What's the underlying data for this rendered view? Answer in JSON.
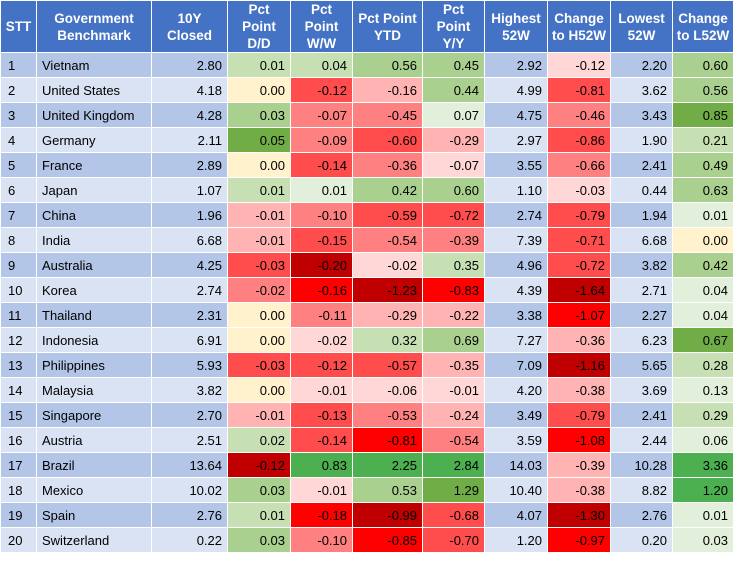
{
  "table": {
    "headers": [
      "STT",
      "Government Benchmark",
      "10Y Closed",
      "Pct Point D/D",
      "Pct Point W/W",
      "Pct Point YTD",
      "Pct Point Y/Y",
      "Highest 52W",
      "Change to H52W",
      "Lowest 52W",
      "Change to L52W"
    ],
    "rows": [
      {
        "stt": "1",
        "name": "Vietnam",
        "closed": "2.80",
        "dd": "0.01",
        "ww": "0.04",
        "ytd": "0.56",
        "yy": "0.45",
        "high": "2.92",
        "ch": "-0.12",
        "low": "2.20",
        "cl": "0.60"
      },
      {
        "stt": "2",
        "name": "United States",
        "closed": "4.18",
        "dd": "0.00",
        "ww": "-0.12",
        "ytd": "-0.16",
        "yy": "0.44",
        "high": "4.99",
        "ch": "-0.81",
        "low": "3.62",
        "cl": "0.56"
      },
      {
        "stt": "3",
        "name": "United Kingdom",
        "closed": "4.28",
        "dd": "0.03",
        "ww": "-0.07",
        "ytd": "-0.45",
        "yy": "0.07",
        "high": "4.75",
        "ch": "-0.46",
        "low": "3.43",
        "cl": "0.85"
      },
      {
        "stt": "4",
        "name": "Germany",
        "closed": "2.11",
        "dd": "0.05",
        "ww": "-0.09",
        "ytd": "-0.60",
        "yy": "-0.29",
        "high": "2.97",
        "ch": "-0.86",
        "low": "1.90",
        "cl": "0.21"
      },
      {
        "stt": "5",
        "name": "France",
        "closed": "2.89",
        "dd": "0.00",
        "ww": "-0.14",
        "ytd": "-0.36",
        "yy": "-0.07",
        "high": "3.55",
        "ch": "-0.66",
        "low": "2.41",
        "cl": "0.49"
      },
      {
        "stt": "6",
        "name": "Japan",
        "closed": "1.07",
        "dd": "0.01",
        "ww": "0.01",
        "ytd": "0.42",
        "yy": "0.60",
        "high": "1.10",
        "ch": "-0.03",
        "low": "0.44",
        "cl": "0.63"
      },
      {
        "stt": "7",
        "name": "China",
        "closed": "1.96",
        "dd": "-0.01",
        "ww": "-0.10",
        "ytd": "-0.59",
        "yy": "-0.72",
        "high": "2.74",
        "ch": "-0.79",
        "low": "1.94",
        "cl": "0.01"
      },
      {
        "stt": "8",
        "name": "India",
        "closed": "6.68",
        "dd": "-0.01",
        "ww": "-0.15",
        "ytd": "-0.54",
        "yy": "-0.39",
        "high": "7.39",
        "ch": "-0.71",
        "low": "6.68",
        "cl": "0.00"
      },
      {
        "stt": "9",
        "name": "Australia",
        "closed": "4.25",
        "dd": "-0.03",
        "ww": "-0.20",
        "ytd": "-0.02",
        "yy": "0.35",
        "high": "4.96",
        "ch": "-0.72",
        "low": "3.82",
        "cl": "0.42"
      },
      {
        "stt": "10",
        "name": "Korea",
        "closed": "2.74",
        "dd": "-0.02",
        "ww": "-0.16",
        "ytd": "-1.23",
        "yy": "-0.83",
        "high": "4.39",
        "ch": "-1.64",
        "low": "2.71",
        "cl": "0.04"
      },
      {
        "stt": "11",
        "name": "Thailand",
        "closed": "2.31",
        "dd": "0.00",
        "ww": "-0.11",
        "ytd": "-0.29",
        "yy": "-0.22",
        "high": "3.38",
        "ch": "-1.07",
        "low": "2.27",
        "cl": "0.04"
      },
      {
        "stt": "12",
        "name": "Indonesia",
        "closed": "6.91",
        "dd": "0.00",
        "ww": "-0.02",
        "ytd": "0.32",
        "yy": "0.69",
        "high": "7.27",
        "ch": "-0.36",
        "low": "6.23",
        "cl": "0.67"
      },
      {
        "stt": "13",
        "name": "Philippines",
        "closed": "5.93",
        "dd": "-0.03",
        "ww": "-0.12",
        "ytd": "-0.57",
        "yy": "-0.35",
        "high": "7.09",
        "ch": "-1.16",
        "low": "5.65",
        "cl": "0.28"
      },
      {
        "stt": "14",
        "name": "Malaysia",
        "closed": "3.82",
        "dd": "0.00",
        "ww": "-0.01",
        "ytd": "-0.06",
        "yy": "-0.01",
        "high": "4.20",
        "ch": "-0.38",
        "low": "3.69",
        "cl": "0.13"
      },
      {
        "stt": "15",
        "name": "Singapore",
        "closed": "2.70",
        "dd": "-0.01",
        "ww": "-0.13",
        "ytd": "-0.53",
        "yy": "-0.24",
        "high": "3.49",
        "ch": "-0.79",
        "low": "2.41",
        "cl": "0.29"
      },
      {
        "stt": "16",
        "name": "Austria",
        "closed": "2.51",
        "dd": "0.02",
        "ww": "-0.14",
        "ytd": "-0.81",
        "yy": "-0.54",
        "high": "3.59",
        "ch": "-1.08",
        "low": "2.44",
        "cl": "0.06"
      },
      {
        "stt": "17",
        "name": "Brazil",
        "closed": "13.64",
        "dd": "-0.12",
        "ww": "0.83",
        "ytd": "2.25",
        "yy": "2.84",
        "high": "14.03",
        "ch": "-0.39",
        "low": "10.28",
        "cl": "3.36"
      },
      {
        "stt": "18",
        "name": "Mexico",
        "closed": "10.02",
        "dd": "0.03",
        "ww": "-0.01",
        "ytd": "0.53",
        "yy": "1.29",
        "high": "10.40",
        "ch": "-0.38",
        "low": "8.82",
        "cl": "1.20"
      },
      {
        "stt": "19",
        "name": "Spain",
        "closed": "2.76",
        "dd": "0.01",
        "ww": "-0.18",
        "ytd": "-0.99",
        "yy": "-0.68",
        "high": "4.07",
        "ch": "-1.30",
        "low": "2.76",
        "cl": "0.01"
      },
      {
        "stt": "20",
        "name": "Switzerland",
        "closed": "0.22",
        "dd": "0.03",
        "ww": "-0.10",
        "ytd": "-0.85",
        "yy": "-0.70",
        "high": "1.20",
        "ch": "-0.97",
        "low": "0.20",
        "cl": "0.03"
      }
    ]
  },
  "chart_data": {
    "type": "table",
    "columns": [
      "STT",
      "Government Benchmark",
      "10Y Closed",
      "Pct Point D/D",
      "Pct Point W/W",
      "Pct Point YTD",
      "Pct Point Y/Y",
      "Highest 52W",
      "Change to H52W",
      "Lowest 52W",
      "Change to L52W"
    ],
    "heatmap_columns": [
      "dd",
      "ww",
      "ytd",
      "yy",
      "ch",
      "cl"
    ],
    "colors": {
      "header": "#4472c4",
      "row_dark": "#b4c6e7",
      "row_light": "#dae3f3",
      "zero": "#fff2cc",
      "positive": [
        "#e2efda",
        "#c6e0b4",
        "#a9d08e",
        "#70ad47",
        "#4caf50"
      ],
      "negative": [
        "#ffd7d7",
        "#ffb3b3",
        "#ff8080",
        "#ff4d4d",
        "#ff0000",
        "#c00000"
      ]
    }
  }
}
